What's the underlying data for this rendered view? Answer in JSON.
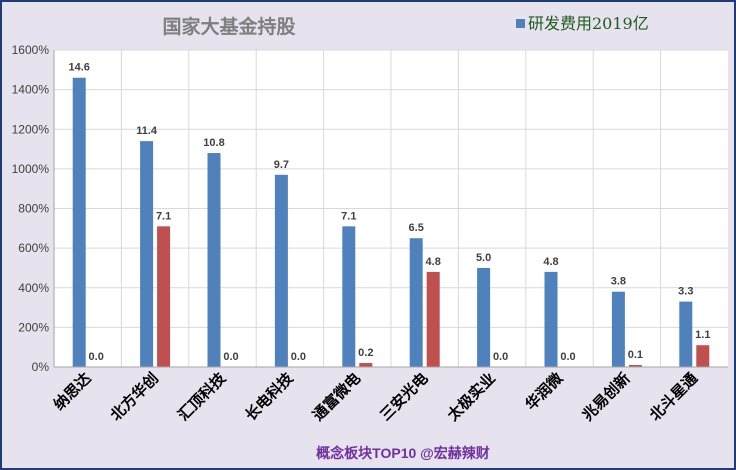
{
  "chart_data": {
    "type": "bar",
    "title": "国家大基金持股",
    "footer": "概念板块TOP10 @宏赫辣财",
    "categories": [
      "纳思达",
      "北方华创",
      "汇顶科技",
      "长电科技",
      "通富微电",
      "三安光电",
      "太极实业",
      "华润微",
      "兆易创新",
      "北斗星通"
    ],
    "series": [
      {
        "name": "研发费用2019亿",
        "color": "#4f81bd",
        "values": [
          14.6,
          11.4,
          10.8,
          9.7,
          7.1,
          6.5,
          5.0,
          4.8,
          3.8,
          3.3
        ],
        "labels": [
          "14.6",
          "11.4",
          "10.8",
          "9.7",
          "7.1",
          "6.5",
          "5.0",
          "4.8",
          "3.8",
          "3.3"
        ]
      },
      {
        "color": "#c0504d",
        "values": [
          0.0,
          7.1,
          0.0,
          0.0,
          0.2,
          4.8,
          0.0,
          0.0,
          0.1,
          1.1
        ],
        "labels": [
          "0.0",
          "7.1",
          "0.0",
          "0.0",
          "0.2",
          "4.8",
          "0.0",
          "0.0",
          "0.1",
          "1.1"
        ]
      }
    ],
    "yticks": [
      "0%",
      "200%",
      "400%",
      "600%",
      "800%",
      "1000%",
      "1200%",
      "1400%",
      "1600%"
    ],
    "ylim": [
      0,
      16
    ],
    "grid": true,
    "legend_position": "top-right",
    "colors": {
      "background": "#e6e3ee",
      "plot_area": "#ffffff",
      "grid": "#d9d9d9",
      "title": "#7f7f7f",
      "legend_text": "#1f5c1f",
      "footer": "#7030a0",
      "border": "#1f3d73"
    }
  }
}
